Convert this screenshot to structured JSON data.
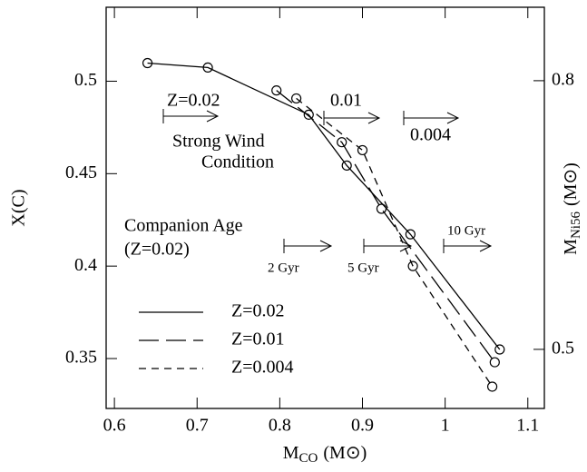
{
  "chart_data": {
    "type": "line",
    "x_label": {
      "main": "M",
      "sub": "CO",
      "unit": "(M⊙)"
    },
    "y_label": "X(C)",
    "y2_label": {
      "main": "M",
      "sub": "Ni56",
      "unit": "(M⊙)"
    },
    "xlim": [
      0.59,
      1.12
    ],
    "xticks": [
      0.6,
      0.7,
      0.8,
      0.9,
      {
        "value": 1,
        "label": "1"
      },
      1.1
    ],
    "ylim": [
      0.323,
      0.54
    ],
    "yticks": [
      0.35,
      0.4,
      0.45,
      0.5
    ],
    "y2lim": [
      0.434,
      0.882
    ],
    "y2ticks": [
      0.5,
      0.8
    ],
    "series": [
      {
        "name": "Z=0.02",
        "color": "#000000",
        "dash": "none",
        "x": [
          0.64,
          0.713,
          0.835,
          0.881,
          0.958,
          1.066
        ],
        "values": [
          0.5098,
          0.5074,
          0.4819,
          0.4544,
          0.4172,
          0.3549
        ]
      },
      {
        "name": "Z=0.01",
        "color": "#000000",
        "dash": "22 8",
        "x": [
          0.796,
          0.875,
          0.923,
          1.06
        ],
        "values": [
          0.495,
          0.467,
          0.431,
          0.348
        ]
      },
      {
        "name": "Z=0.004",
        "color": "#000000",
        "dash": "8 6",
        "x": [
          0.82,
          0.9,
          0.961,
          1.057
        ],
        "values": [
          0.4907,
          0.4627,
          0.4,
          0.3348
        ]
      }
    ],
    "annotations": {
      "wind_z1": "Z=0.02",
      "wind_z2": "0.01",
      "wind_z3": "0.004",
      "wind_line1": "Strong Wind",
      "wind_line2": "Condition",
      "age_line1": "Companion Age",
      "age_line2": "(Z=0.02)",
      "age1": "2 Gyr",
      "age2": "5 Gyr",
      "age3": "10 Gyr"
    }
  }
}
